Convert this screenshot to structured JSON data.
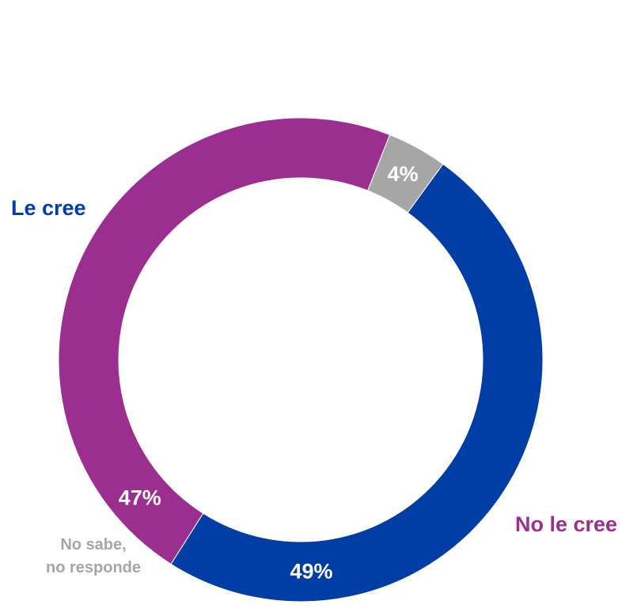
{
  "chart_data": {
    "type": "pie",
    "style": "donut",
    "slices": [
      {
        "label": "Le cree",
        "value": 49,
        "value_label": "49%",
        "color": "#003DA5"
      },
      {
        "label": "No le cree",
        "value": 47,
        "value_label": "47%",
        "color": "#9B2F8F"
      },
      {
        "label": "No sabe, no responde",
        "label_lines": [
          "No sabe,",
          "no responde"
        ],
        "value": 4,
        "value_label": "4%",
        "color": "#A6A6A6"
      }
    ],
    "start_angle_deg": 36,
    "direction": "clockwise"
  }
}
